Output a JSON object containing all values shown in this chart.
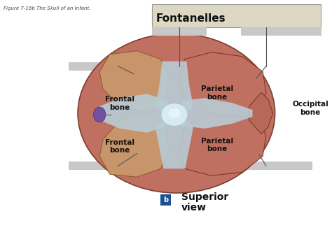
{
  "title": "Fontanelles",
  "figure_caption": "Figure 7-16b The Skull of an Infant.",
  "bottom_label_b": "b",
  "bottom_label_text": "Superior\nview",
  "bg_color": "#ffffff",
  "title_bg": "#ddd8c4",
  "title_border": "#aaaaaa",
  "frontal_color": "#c8956a",
  "frontal_inner": "#b8855a",
  "parietal_color": "#c07060",
  "parietal_inner": "#b06050",
  "occipital_color": "#b86858",
  "suture_color": "#b8ccd4",
  "suture_highlight": "#d8eef4",
  "skull_bg": "#c07060",
  "purple_color": "#7050a0",
  "label_grey": "#c8c8c8",
  "line_color": "#555555",
  "blue_box": "#1a5096"
}
